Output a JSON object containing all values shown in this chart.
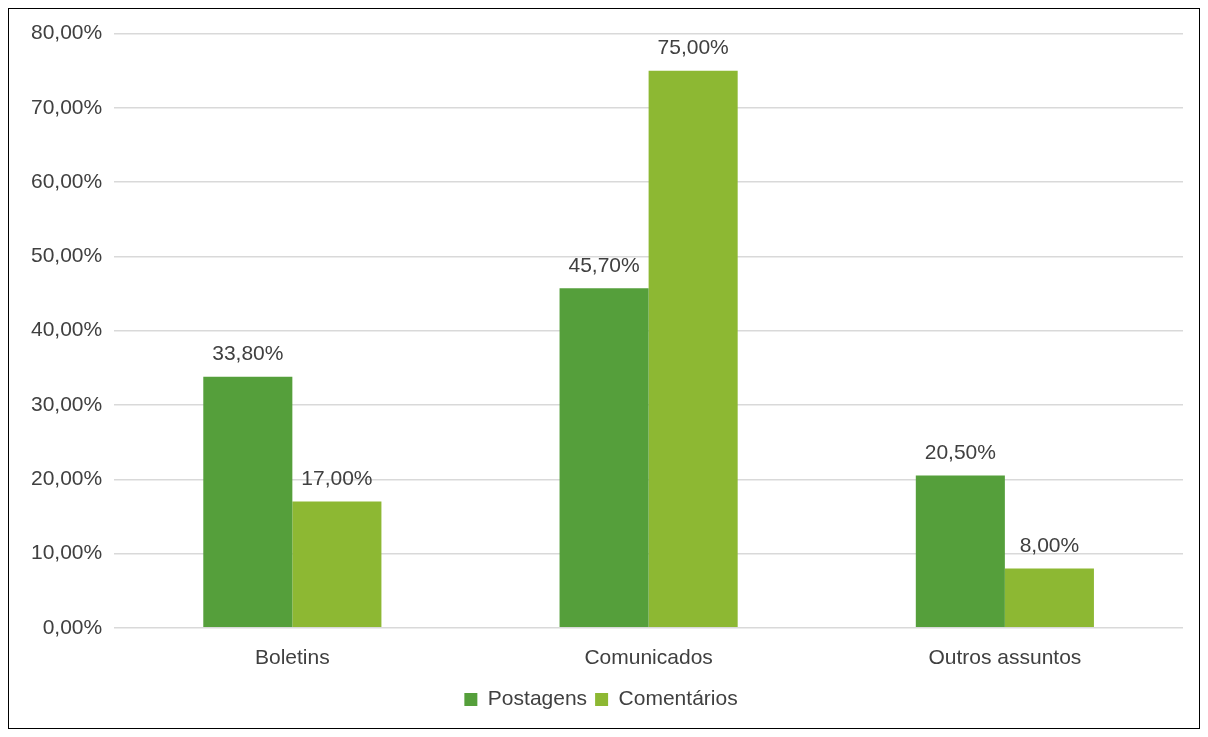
{
  "chart_data": {
    "type": "bar",
    "categories": [
      "Boletins",
      "Comunicados",
      "Outros assuntos"
    ],
    "series": [
      {
        "name": "Postagens",
        "color": "#559f3b",
        "values": [
          33.8,
          45.7,
          20.5
        ],
        "value_labels": [
          "33,80%",
          "45,70%",
          "20,50%"
        ]
      },
      {
        "name": "Comentários",
        "color": "#8db833",
        "values": [
          17,
          75,
          8
        ],
        "value_labels": [
          "17,00%",
          "75,00%",
          "8,00%"
        ]
      }
    ],
    "ylim": [
      0,
      80
    ],
    "yticks": [
      {
        "value": 0,
        "label": "0,00%"
      },
      {
        "value": 10,
        "label": "10,00%"
      },
      {
        "value": 20,
        "label": "20,00%"
      },
      {
        "value": 30,
        "label": "30,00%"
      },
      {
        "value": 40,
        "label": "40,00%"
      },
      {
        "value": 50,
        "label": "50,00%"
      },
      {
        "value": 60,
        "label": "60,00%"
      },
      {
        "value": 70,
        "label": "70,00%"
      },
      {
        "value": 80,
        "label": "80,00%"
      }
    ],
    "grid": "y",
    "legend": "bottom"
  }
}
